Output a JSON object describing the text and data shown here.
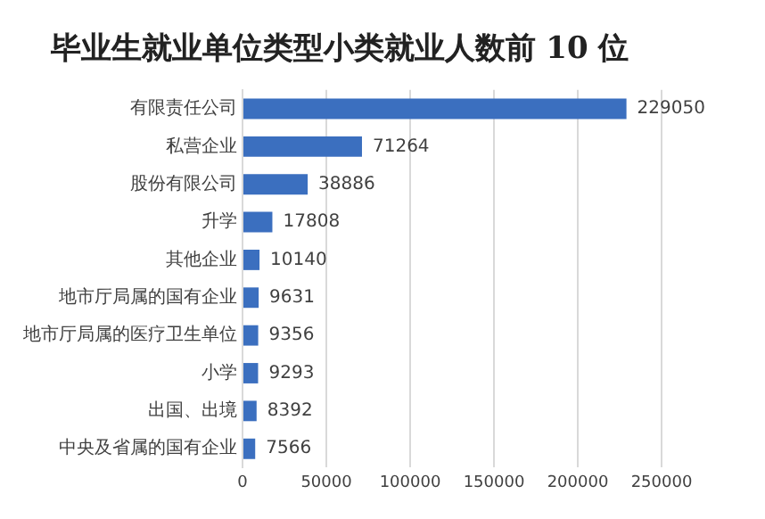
{
  "chart_data": {
    "type": "bar",
    "orientation": "horizontal",
    "title": "毕业生就业单位类型小类就业人数前 10 位",
    "categories": [
      "有限责任公司",
      "私营企业",
      "股份有限公司",
      "升学",
      "其他企业",
      "地市厅局属的国有企业",
      "地市厅局属的医疗卫生单位",
      "小学",
      "出国、出境",
      "中央及省属的国有企业"
    ],
    "values": [
      229050,
      71264,
      38886,
      17808,
      10140,
      9631,
      9356,
      9293,
      8392,
      7566
    ],
    "color": "#3b6fbf",
    "xlim": [
      0,
      250000
    ],
    "xticks": [
      0,
      50000,
      100000,
      150000,
      200000,
      250000
    ],
    "grid": "x",
    "data_labels": true,
    "legend": false
  }
}
